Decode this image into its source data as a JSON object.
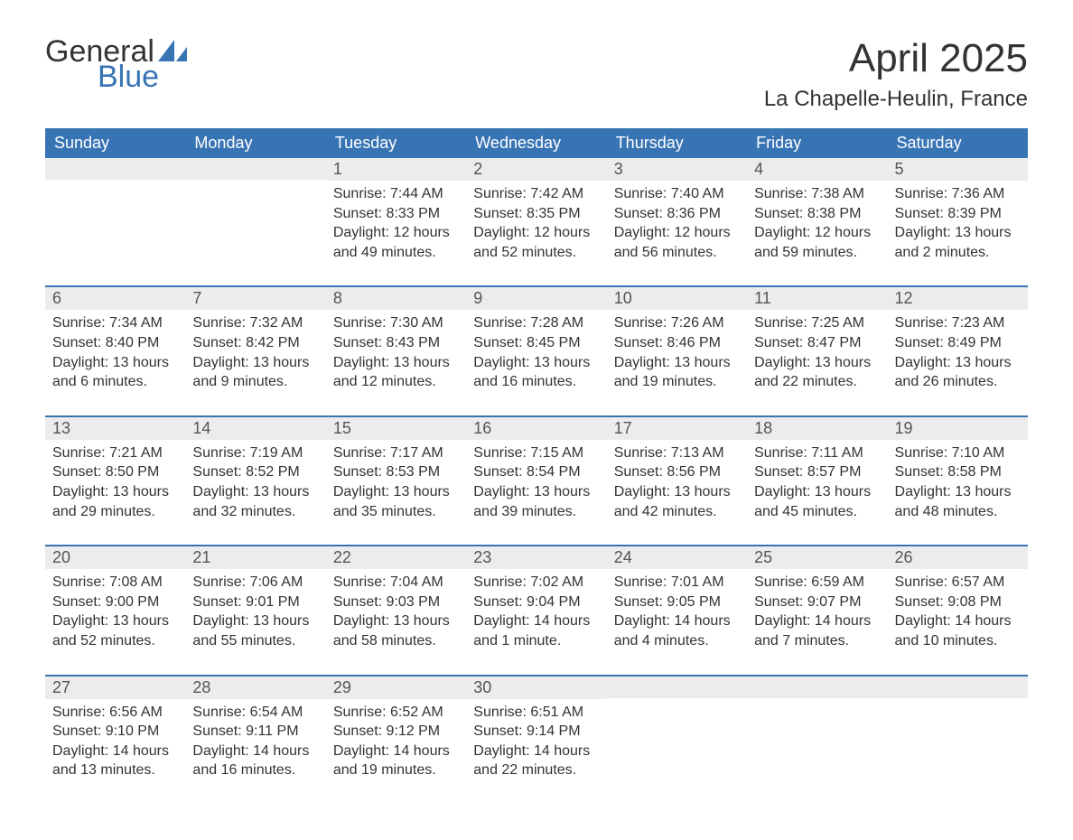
{
  "logo": {
    "general": "General",
    "blue": "Blue"
  },
  "title": "April 2025",
  "location": "La Chapelle-Heulin, France",
  "colors": {
    "header_bg": "#3874b4",
    "header_text": "#ffffff",
    "daynum_bg": "#ececec",
    "border": "#3874b4",
    "text": "#333333",
    "logo_blue": "#3874b4"
  },
  "day_headers": [
    "Sunday",
    "Monday",
    "Tuesday",
    "Wednesday",
    "Thursday",
    "Friday",
    "Saturday"
  ],
  "weeks": [
    [
      {
        "num": "",
        "sunrise": "",
        "sunset": "",
        "daylight": ""
      },
      {
        "num": "",
        "sunrise": "",
        "sunset": "",
        "daylight": ""
      },
      {
        "num": "1",
        "sunrise": "Sunrise: 7:44 AM",
        "sunset": "Sunset: 8:33 PM",
        "daylight": "Daylight: 12 hours and 49 minutes."
      },
      {
        "num": "2",
        "sunrise": "Sunrise: 7:42 AM",
        "sunset": "Sunset: 8:35 PM",
        "daylight": "Daylight: 12 hours and 52 minutes."
      },
      {
        "num": "3",
        "sunrise": "Sunrise: 7:40 AM",
        "sunset": "Sunset: 8:36 PM",
        "daylight": "Daylight: 12 hours and 56 minutes."
      },
      {
        "num": "4",
        "sunrise": "Sunrise: 7:38 AM",
        "sunset": "Sunset: 8:38 PM",
        "daylight": "Daylight: 12 hours and 59 minutes."
      },
      {
        "num": "5",
        "sunrise": "Sunrise: 7:36 AM",
        "sunset": "Sunset: 8:39 PM",
        "daylight": "Daylight: 13 hours and 2 minutes."
      }
    ],
    [
      {
        "num": "6",
        "sunrise": "Sunrise: 7:34 AM",
        "sunset": "Sunset: 8:40 PM",
        "daylight": "Daylight: 13 hours and 6 minutes."
      },
      {
        "num": "7",
        "sunrise": "Sunrise: 7:32 AM",
        "sunset": "Sunset: 8:42 PM",
        "daylight": "Daylight: 13 hours and 9 minutes."
      },
      {
        "num": "8",
        "sunrise": "Sunrise: 7:30 AM",
        "sunset": "Sunset: 8:43 PM",
        "daylight": "Daylight: 13 hours and 12 minutes."
      },
      {
        "num": "9",
        "sunrise": "Sunrise: 7:28 AM",
        "sunset": "Sunset: 8:45 PM",
        "daylight": "Daylight: 13 hours and 16 minutes."
      },
      {
        "num": "10",
        "sunrise": "Sunrise: 7:26 AM",
        "sunset": "Sunset: 8:46 PM",
        "daylight": "Daylight: 13 hours and 19 minutes."
      },
      {
        "num": "11",
        "sunrise": "Sunrise: 7:25 AM",
        "sunset": "Sunset: 8:47 PM",
        "daylight": "Daylight: 13 hours and 22 minutes."
      },
      {
        "num": "12",
        "sunrise": "Sunrise: 7:23 AM",
        "sunset": "Sunset: 8:49 PM",
        "daylight": "Daylight: 13 hours and 26 minutes."
      }
    ],
    [
      {
        "num": "13",
        "sunrise": "Sunrise: 7:21 AM",
        "sunset": "Sunset: 8:50 PM",
        "daylight": "Daylight: 13 hours and 29 minutes."
      },
      {
        "num": "14",
        "sunrise": "Sunrise: 7:19 AM",
        "sunset": "Sunset: 8:52 PM",
        "daylight": "Daylight: 13 hours and 32 minutes."
      },
      {
        "num": "15",
        "sunrise": "Sunrise: 7:17 AM",
        "sunset": "Sunset: 8:53 PM",
        "daylight": "Daylight: 13 hours and 35 minutes."
      },
      {
        "num": "16",
        "sunrise": "Sunrise: 7:15 AM",
        "sunset": "Sunset: 8:54 PM",
        "daylight": "Daylight: 13 hours and 39 minutes."
      },
      {
        "num": "17",
        "sunrise": "Sunrise: 7:13 AM",
        "sunset": "Sunset: 8:56 PM",
        "daylight": "Daylight: 13 hours and 42 minutes."
      },
      {
        "num": "18",
        "sunrise": "Sunrise: 7:11 AM",
        "sunset": "Sunset: 8:57 PM",
        "daylight": "Daylight: 13 hours and 45 minutes."
      },
      {
        "num": "19",
        "sunrise": "Sunrise: 7:10 AM",
        "sunset": "Sunset: 8:58 PM",
        "daylight": "Daylight: 13 hours and 48 minutes."
      }
    ],
    [
      {
        "num": "20",
        "sunrise": "Sunrise: 7:08 AM",
        "sunset": "Sunset: 9:00 PM",
        "daylight": "Daylight: 13 hours and 52 minutes."
      },
      {
        "num": "21",
        "sunrise": "Sunrise: 7:06 AM",
        "sunset": "Sunset: 9:01 PM",
        "daylight": "Daylight: 13 hours and 55 minutes."
      },
      {
        "num": "22",
        "sunrise": "Sunrise: 7:04 AM",
        "sunset": "Sunset: 9:03 PM",
        "daylight": "Daylight: 13 hours and 58 minutes."
      },
      {
        "num": "23",
        "sunrise": "Sunrise: 7:02 AM",
        "sunset": "Sunset: 9:04 PM",
        "daylight": "Daylight: 14 hours and 1 minute."
      },
      {
        "num": "24",
        "sunrise": "Sunrise: 7:01 AM",
        "sunset": "Sunset: 9:05 PM",
        "daylight": "Daylight: 14 hours and 4 minutes."
      },
      {
        "num": "25",
        "sunrise": "Sunrise: 6:59 AM",
        "sunset": "Sunset: 9:07 PM",
        "daylight": "Daylight: 14 hours and 7 minutes."
      },
      {
        "num": "26",
        "sunrise": "Sunrise: 6:57 AM",
        "sunset": "Sunset: 9:08 PM",
        "daylight": "Daylight: 14 hours and 10 minutes."
      }
    ],
    [
      {
        "num": "27",
        "sunrise": "Sunrise: 6:56 AM",
        "sunset": "Sunset: 9:10 PM",
        "daylight": "Daylight: 14 hours and 13 minutes."
      },
      {
        "num": "28",
        "sunrise": "Sunrise: 6:54 AM",
        "sunset": "Sunset: 9:11 PM",
        "daylight": "Daylight: 14 hours and 16 minutes."
      },
      {
        "num": "29",
        "sunrise": "Sunrise: 6:52 AM",
        "sunset": "Sunset: 9:12 PM",
        "daylight": "Daylight: 14 hours and 19 minutes."
      },
      {
        "num": "30",
        "sunrise": "Sunrise: 6:51 AM",
        "sunset": "Sunset: 9:14 PM",
        "daylight": "Daylight: 14 hours and 22 minutes."
      },
      {
        "num": "",
        "sunrise": "",
        "sunset": "",
        "daylight": ""
      },
      {
        "num": "",
        "sunrise": "",
        "sunset": "",
        "daylight": ""
      },
      {
        "num": "",
        "sunrise": "",
        "sunset": "",
        "daylight": ""
      }
    ]
  ]
}
